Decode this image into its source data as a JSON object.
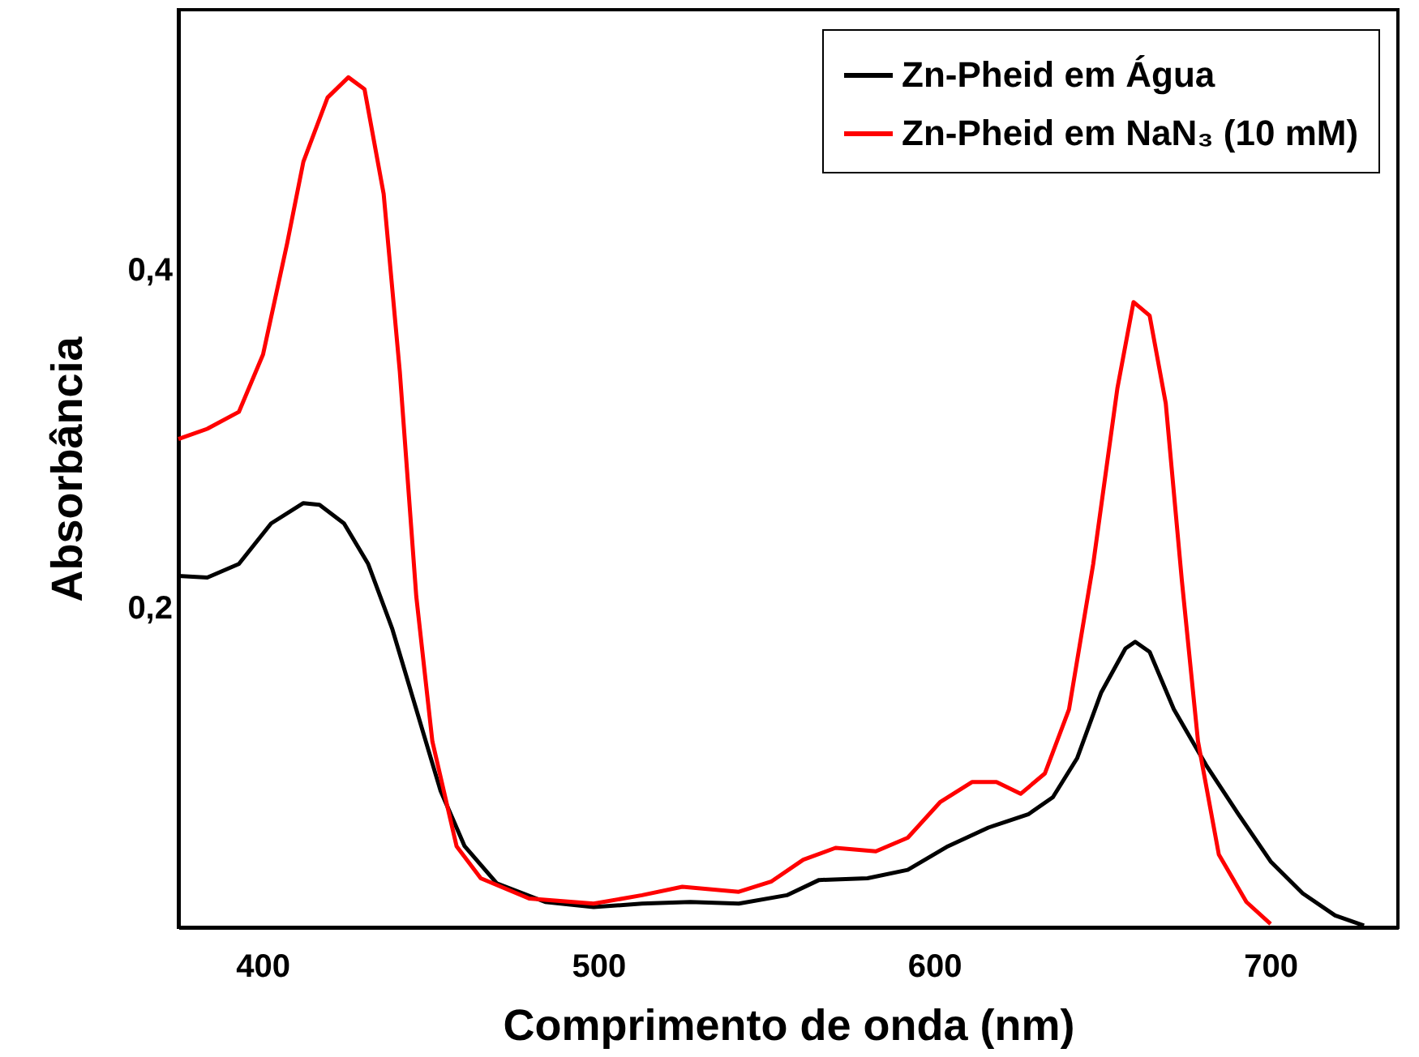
{
  "chart_data": {
    "type": "line",
    "xlabel": "Comprimento de onda (nm)",
    "ylabel": "Absorbância",
    "xlim": [
      375,
      738
    ],
    "xticks": [
      400,
      500,
      600,
      700
    ],
    "ylim": [
      0.011,
      0.554
    ],
    "yticks": [
      {
        "value": 0.2,
        "label": "0,2"
      },
      {
        "value": 0.4,
        "label": "0,4"
      }
    ],
    "grid": false,
    "legend": "top right",
    "line_style": "solid",
    "marker": "none",
    "series": [
      {
        "name": "Zn-Pheid em Água",
        "color": "#000000",
        "x": [
          375,
          383.6,
          393,
          402.6,
          412.2,
          417,
          424.3,
          431.5,
          438.6,
          445.8,
          453,
          460.2,
          469.8,
          484.2,
          498.6,
          513,
          527.4,
          541.8,
          556.1,
          565.7,
          580.1,
          592.1,
          604.1,
          616.1,
          628.1,
          635.3,
          642.5,
          649.7,
          656.9,
          659.8,
          664.1,
          671.3,
          680.9,
          690.5,
          700.1,
          709.7,
          719.3,
          727.9
        ],
        "values": [
          0.219,
          0.218,
          0.226,
          0.25,
          0.262,
          0.261,
          0.25,
          0.226,
          0.188,
          0.14,
          0.092,
          0.059,
          0.037,
          0.026,
          0.023,
          0.025,
          0.026,
          0.025,
          0.03,
          0.039,
          0.04,
          0.045,
          0.059,
          0.07,
          0.078,
          0.088,
          0.111,
          0.15,
          0.176,
          0.18,
          0.174,
          0.14,
          0.107,
          0.078,
          0.05,
          0.031,
          0.018,
          0.012
        ]
      },
      {
        "name": "Zn-Pheid em NaN₃ (10 mM)",
        "color": "#ff0000",
        "x": [
          375,
          383.6,
          393,
          400.2,
          407.4,
          412.2,
          419.4,
          425.6,
          430.4,
          436.1,
          440.9,
          445.8,
          450.6,
          457.8,
          465,
          479.4,
          498.6,
          513,
          525,
          541.8,
          551.4,
          561,
          570.6,
          582.6,
          592.1,
          601.7,
          611.3,
          618.5,
          625.7,
          632.9,
          640.1,
          647.3,
          654.5,
          659.3,
          664.1,
          668.9,
          673.7,
          678.5,
          684.7,
          692.9,
          700.1
        ],
        "values": [
          0.3,
          0.306,
          0.316,
          0.35,
          0.416,
          0.464,
          0.502,
          0.514,
          0.507,
          0.445,
          0.34,
          0.207,
          0.121,
          0.059,
          0.04,
          0.028,
          0.025,
          0.03,
          0.035,
          0.032,
          0.038,
          0.051,
          0.058,
          0.056,
          0.064,
          0.085,
          0.097,
          0.097,
          0.09,
          0.102,
          0.14,
          0.226,
          0.33,
          0.381,
          0.373,
          0.321,
          0.216,
          0.121,
          0.054,
          0.026,
          0.013
        ]
      }
    ]
  }
}
